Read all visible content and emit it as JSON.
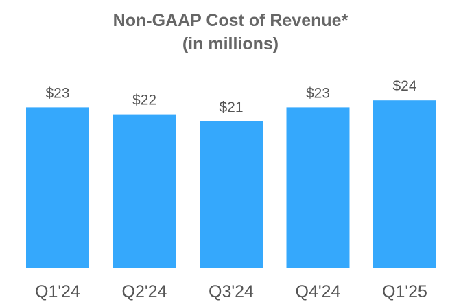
{
  "chart_data": {
    "type": "bar",
    "title": "Non-GAAP Cost of Revenue*",
    "subtitle": "(in millions)",
    "categories": [
      "Q1'24",
      "Q2'24",
      "Q3'24",
      "Q4'24",
      "Q1'25"
    ],
    "values": [
      23,
      22,
      21,
      23,
      24
    ],
    "value_labels": [
      "$23",
      "$22",
      "$21",
      "$23",
      "$24"
    ],
    "xlabel": "",
    "ylabel": "",
    "bar_color": "#35A8FC",
    "grid": false
  }
}
